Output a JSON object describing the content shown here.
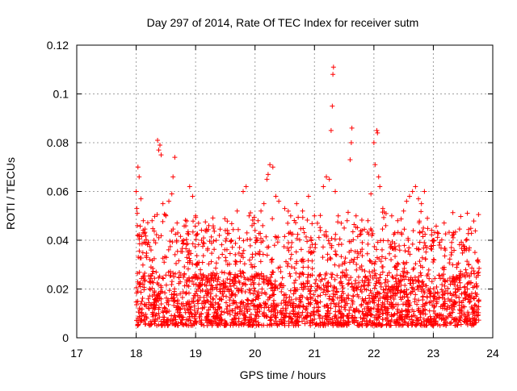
{
  "chart_data": {
    "type": "scatter",
    "title": "Day 297 of 2014, Rate Of TEC Index for receiver sutm",
    "xlabel": "GPS time / hours",
    "ylabel": "ROTI / TECUs",
    "xlim": [
      17,
      24
    ],
    "ylim": [
      0,
      0.12
    ],
    "xticks": [
      17,
      18,
      19,
      20,
      21,
      22,
      23,
      24
    ],
    "xtick_labels": [
      "17",
      "18",
      "19",
      "20",
      "21",
      "22",
      "23",
      "24"
    ],
    "yticks": [
      0,
      0.02,
      0.04,
      0.06,
      0.08,
      0.1,
      0.12
    ],
    "ytick_labels": [
      "0",
      "0.02",
      "0.04",
      "0.06",
      "0.08",
      "0.1",
      "0.12"
    ],
    "grid": true,
    "marker": "+",
    "color": "#ff0000",
    "series": [
      {
        "name": "ROTI",
        "points": [
          [
            18.0,
            0.06
          ],
          [
            18.01,
            0.053
          ],
          [
            18.02,
            0.046
          ],
          [
            18.03,
            0.07
          ],
          [
            18.05,
            0.066
          ],
          [
            18.08,
            0.057
          ],
          [
            18.12,
            0.048
          ],
          [
            18.2,
            0.039
          ],
          [
            18.25,
            0.036
          ],
          [
            18.3,
            0.04
          ],
          [
            18.36,
            0.081
          ],
          [
            18.38,
            0.077
          ],
          [
            18.4,
            0.079
          ],
          [
            18.42,
            0.075
          ],
          [
            18.45,
            0.055
          ],
          [
            18.5,
            0.05
          ],
          [
            18.55,
            0.056
          ],
          [
            18.6,
            0.059
          ],
          [
            18.65,
            0.074
          ],
          [
            18.62,
            0.066
          ],
          [
            18.7,
            0.043
          ],
          [
            18.8,
            0.04
          ],
          [
            18.9,
            0.062
          ],
          [
            18.95,
            0.058
          ],
          [
            19.0,
            0.05
          ],
          [
            19.05,
            0.047
          ],
          [
            19.1,
            0.04
          ],
          [
            19.2,
            0.036
          ],
          [
            19.3,
            0.045
          ],
          [
            19.4,
            0.042
          ],
          [
            19.5,
            0.044
          ],
          [
            19.6,
            0.04
          ],
          [
            19.7,
            0.052
          ],
          [
            19.8,
            0.06
          ],
          [
            19.85,
            0.062
          ],
          [
            19.9,
            0.05
          ],
          [
            19.95,
            0.046
          ],
          [
            20.0,
            0.044
          ],
          [
            20.05,
            0.048
          ],
          [
            20.1,
            0.052
          ],
          [
            20.15,
            0.055
          ],
          [
            20.2,
            0.065
          ],
          [
            20.22,
            0.067
          ],
          [
            20.25,
            0.071
          ],
          [
            20.3,
            0.07
          ],
          [
            20.35,
            0.058
          ],
          [
            20.4,
            0.056
          ],
          [
            20.5,
            0.053
          ],
          [
            20.55,
            0.047
          ],
          [
            20.6,
            0.05
          ],
          [
            20.7,
            0.055
          ],
          [
            20.8,
            0.052
          ],
          [
            20.9,
            0.058
          ],
          [
            21.0,
            0.05
          ],
          [
            21.05,
            0.047
          ],
          [
            21.1,
            0.044
          ],
          [
            21.15,
            0.062
          ],
          [
            21.2,
            0.066
          ],
          [
            21.25,
            0.065
          ],
          [
            21.28,
            0.085
          ],
          [
            21.3,
            0.095
          ],
          [
            21.31,
            0.108
          ],
          [
            21.32,
            0.111
          ],
          [
            21.35,
            0.06
          ],
          [
            21.4,
            0.05
          ],
          [
            21.45,
            0.047
          ],
          [
            21.5,
            0.045
          ],
          [
            21.55,
            0.048
          ],
          [
            21.6,
            0.073
          ],
          [
            21.62,
            0.08
          ],
          [
            21.63,
            0.086
          ],
          [
            21.7,
            0.05
          ],
          [
            21.8,
            0.044
          ],
          [
            21.9,
            0.048
          ],
          [
            21.95,
            0.059
          ],
          [
            22.0,
            0.08
          ],
          [
            22.02,
            0.071
          ],
          [
            22.05,
            0.085
          ],
          [
            22.06,
            0.084
          ],
          [
            22.08,
            0.066
          ],
          [
            22.1,
            0.062
          ],
          [
            22.15,
            0.053
          ],
          [
            22.2,
            0.046
          ],
          [
            22.3,
            0.05
          ],
          [
            22.4,
            0.048
          ],
          [
            22.5,
            0.052
          ],
          [
            22.55,
            0.056
          ],
          [
            22.6,
            0.058
          ],
          [
            22.65,
            0.06
          ],
          [
            22.7,
            0.062
          ],
          [
            22.75,
            0.057
          ],
          [
            22.8,
            0.055
          ],
          [
            22.85,
            0.06
          ],
          [
            22.9,
            0.049
          ],
          [
            23.0,
            0.04
          ],
          [
            23.1,
            0.038
          ],
          [
            23.2,
            0.036
          ],
          [
            23.3,
            0.034
          ],
          [
            23.4,
            0.03
          ],
          [
            23.5,
            0.038
          ],
          [
            23.55,
            0.04
          ],
          [
            23.6,
            0.036
          ],
          [
            23.7,
            0.035
          ],
          [
            23.75,
            0.032
          ]
        ]
      }
    ],
    "dense_band": {
      "x_start": 18.0,
      "x_end": 23.77,
      "typical_low": 0.005,
      "typical_high": 0.045
    }
  }
}
